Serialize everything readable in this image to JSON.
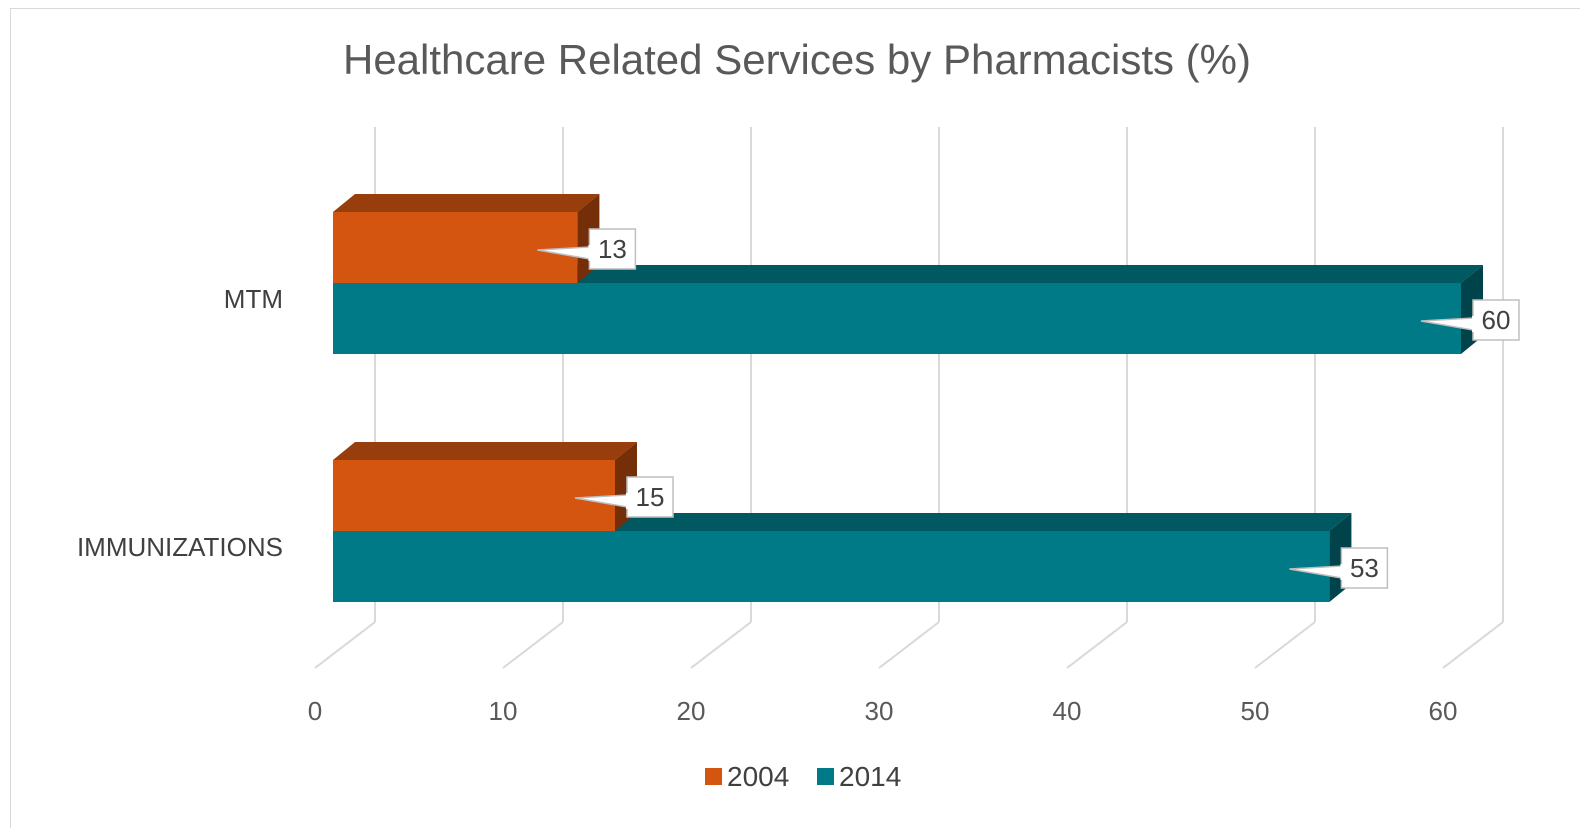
{
  "chart_data": {
    "type": "bar",
    "orientation": "horizontal",
    "style": "3d",
    "title": "Healthcare Related Services by Pharmacists (%)",
    "xlabel": "",
    "ylabel": "",
    "categories": [
      "MTM",
      "IMMUNIZATIONS"
    ],
    "series": [
      {
        "name": "2004",
        "values": [
          13,
          15
        ],
        "color": "#d35510"
      },
      {
        "name": "2014",
        "values": [
          60,
          53
        ],
        "color": "#007a87"
      }
    ],
    "xlim": [
      0,
      60
    ],
    "x_ticks": [
      0,
      10,
      20,
      30,
      40,
      50,
      60
    ],
    "grid": true,
    "legend": "bottom",
    "data_labels": true
  }
}
